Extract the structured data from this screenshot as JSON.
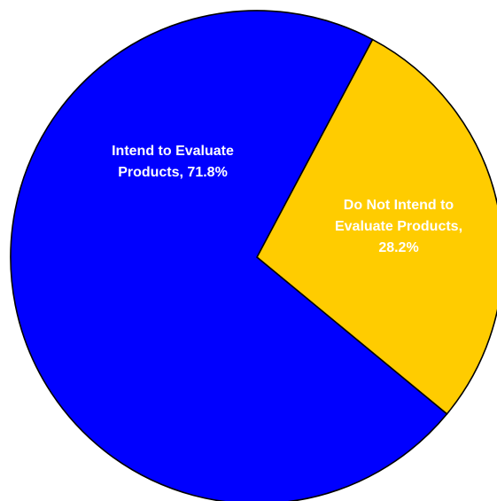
{
  "chart_data": {
    "type": "pie",
    "title": "",
    "start_angle_deg": -62,
    "direction": "clockwise",
    "slices": [
      {
        "name": "Do Not Intend to Evaluate Products",
        "value": 28.2,
        "color": "#FFCC00",
        "label_lines": [
          "Do Not Intend to",
          "Evaluate Products,",
          "28.2%"
        ]
      },
      {
        "name": "Intend to Evaluate Products",
        "value": 71.8,
        "color": "#0000FF",
        "label_lines": [
          "Intend to Evaluate",
          "Products, 71.8%"
        ]
      }
    ]
  }
}
